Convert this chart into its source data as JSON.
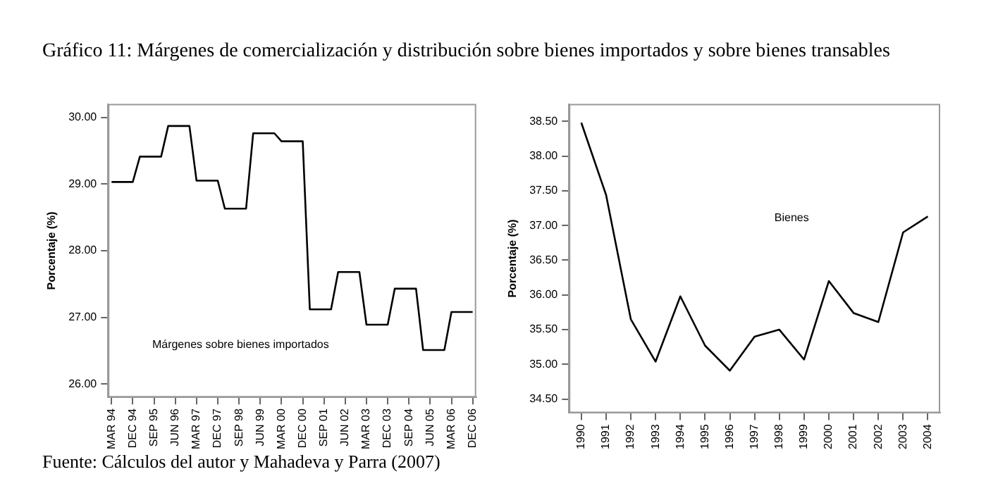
{
  "chart_data": [
    {
      "type": "line",
      "title": "Gráfico 11: Márgenes de comercialización y distribución sobre bienes importados y sobre bienes transables",
      "ylabel": "Porcentaje (%)",
      "categories": [
        "MAR 94",
        null,
        null,
        "DEC 94",
        null,
        null,
        "SEP 95",
        null,
        null,
        "JUN 96",
        null,
        null,
        "MAR 97",
        null,
        null,
        "DEC 97",
        null,
        null,
        "SEP 98",
        null,
        null,
        "JUN 99",
        null,
        null,
        "MAR 00",
        null,
        null,
        "DEC 00",
        null,
        null,
        "SEP 01",
        null,
        null,
        "JUN 02",
        null,
        null,
        "MAR 03",
        null,
        null,
        "DEC 03",
        null,
        null,
        "SEP 04",
        null,
        null,
        "JUN 05",
        null,
        null,
        "MAR 06",
        null,
        null,
        "DEC 06"
      ],
      "series": [
        {
          "name": "Márgenes sobre bienes importados",
          "color": "#000000",
          "values": [
            29.03,
            29.03,
            29.03,
            29.03,
            29.41,
            29.41,
            29.41,
            29.41,
            29.87,
            29.87,
            29.87,
            29.87,
            29.05,
            29.05,
            29.05,
            29.05,
            28.63,
            28.63,
            28.63,
            28.63,
            29.76,
            29.76,
            29.76,
            29.76,
            29.64,
            29.64,
            29.64,
            29.64,
            27.12,
            27.12,
            27.12,
            27.12,
            27.68,
            27.68,
            27.68,
            27.68,
            26.89,
            26.89,
            26.89,
            26.89,
            27.43,
            27.43,
            27.43,
            27.43,
            26.51,
            26.51,
            26.51,
            26.51,
            27.08,
            27.08,
            27.08,
            27.08
          ]
        }
      ],
      "ylim": [
        25.8,
        30.2
      ],
      "yticks": [
        {
          "value": 26,
          "label": "26.00"
        },
        {
          "value": 27,
          "label": "27.00"
        },
        {
          "value": 28,
          "label": "28.00"
        },
        {
          "value": 29,
          "label": "29.00"
        },
        {
          "value": 30,
          "label": "30.00"
        }
      ],
      "grid": false,
      "legend": false,
      "marker": "none",
      "line_style": "solid"
    },
    {
      "type": "line",
      "ylabel": "Porcentaje (%)",
      "annotations": [
        "Fuente: Cálculos del autor y Mahadeva y Parra (2007)"
      ],
      "categories": [
        "1990",
        "1991",
        "1992",
        "1993",
        "1994",
        "1995",
        "1996",
        "1997",
        "1998",
        "1999",
        "2000",
        "2001",
        "2002",
        "2003",
        "2004"
      ],
      "series": [
        {
          "name": "Bienes",
          "color": "#000000",
          "values": [
            38.48,
            37.44,
            35.65,
            35.04,
            35.98,
            35.27,
            34.91,
            35.4,
            35.5,
            35.07,
            36.2,
            35.74,
            35.61,
            36.9,
            37.13
          ]
        }
      ],
      "ylim": [
        34.3,
        38.75
      ],
      "yticks": [
        {
          "value": 34.5,
          "label": "34.50"
        },
        {
          "value": 35,
          "label": "35.00"
        },
        {
          "value": 35.5,
          "label": "35.50"
        },
        {
          "value": 36,
          "label": "36.00"
        },
        {
          "value": 36.5,
          "label": "36.50"
        },
        {
          "value": 37,
          "label": "37.00"
        },
        {
          "value": 37.5,
          "label": "37.50"
        },
        {
          "value": 38,
          "label": "38.00"
        },
        {
          "value": 38.5,
          "label": "38.50"
        }
      ],
      "grid": false,
      "legend": false,
      "marker": "none",
      "line_style": "solid"
    }
  ]
}
